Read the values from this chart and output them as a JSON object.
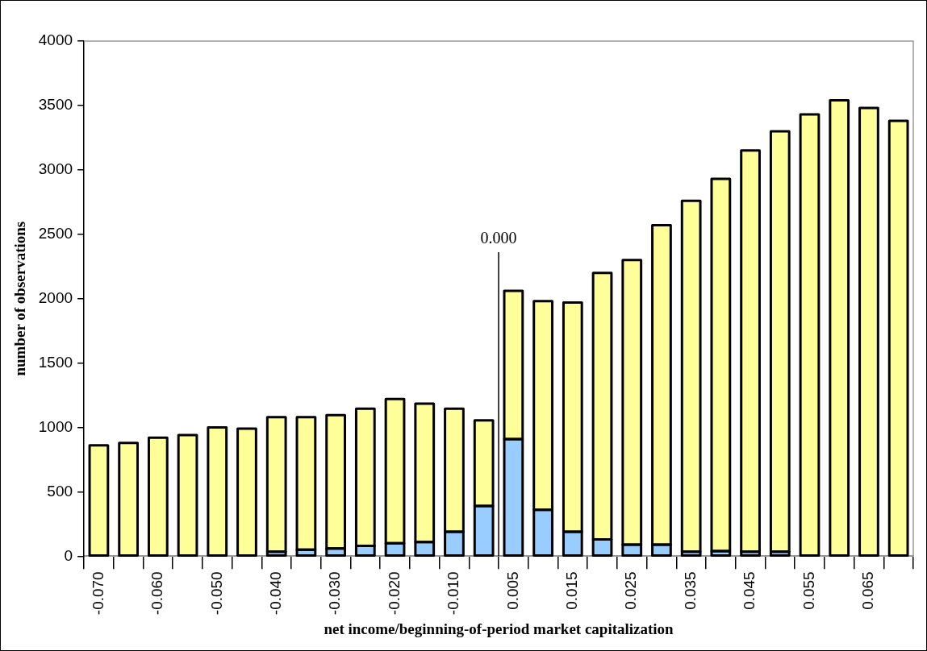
{
  "chart_data": {
    "type": "bar",
    "xlabel": "net income/beginning-of-period market capitalization",
    "ylabel": "number of observations",
    "categories": [
      "-0.070",
      null,
      "-0.060",
      null,
      "-0.050",
      null,
      "-0.040",
      null,
      "-0.030",
      null,
      "-0.020",
      null,
      "-0.010",
      null,
      "0.005",
      null,
      "0.015",
      null,
      "0.025",
      null,
      "0.035",
      null,
      "0.045",
      null,
      "0.055",
      null,
      "0.065",
      null
    ],
    "stacked": true,
    "series": [
      {
        "color": "#99ccff",
        "values": [
          null,
          null,
          null,
          null,
          null,
          null,
          35,
          50,
          60,
          80,
          100,
          110,
          190,
          390,
          910,
          360,
          190,
          130,
          90,
          90,
          35,
          40,
          35,
          35,
          null,
          null,
          null,
          null
        ]
      },
      {
        "color": "#ffff99",
        "values": [
          860,
          880,
          920,
          940,
          1000,
          990,
          1045,
          1030,
          1035,
          1065,
          1120,
          1075,
          955,
          665,
          1150,
          1620,
          1780,
          2070,
          2210,
          2480,
          2725,
          2890,
          3115,
          3265,
          3430,
          3540,
          3480,
          3380
        ]
      }
    ],
    "ylim": [
      0,
      4000
    ],
    "yticks": [
      0,
      500,
      1000,
      1500,
      2000,
      2500,
      3000,
      3500,
      4000
    ],
    "annotations": [
      "0.000"
    ],
    "grid": false,
    "legend": false
  }
}
